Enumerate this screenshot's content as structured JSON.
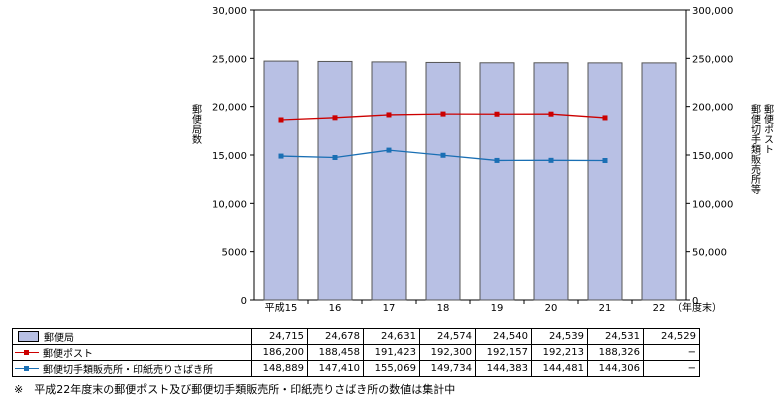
{
  "chart_data": {
    "type": "bar",
    "categories": [
      "平成15",
      "16",
      "17",
      "18",
      "19",
      "20",
      "21",
      "22"
    ],
    "x_unit": "（年度末）",
    "left_axis": {
      "label": "郵便局数",
      "ticks": [
        "0",
        "5000",
        "10,000",
        "15,000",
        "20,000",
        "25,000",
        "30,000"
      ],
      "ylim": [
        0,
        30000
      ]
    },
    "right_axis": {
      "label": "郵便ポスト\n郵便切手類販売所等",
      "ticks": [
        "0",
        "50,000",
        "100,000",
        "150,000",
        "200,000",
        "250,000",
        "300,000"
      ],
      "ylim": [
        0,
        300000
      ]
    },
    "series": [
      {
        "name": "郵便局",
        "kind": "bar",
        "axis": "left",
        "color": "#b8c0e4",
        "values": [
          24715,
          24678,
          24631,
          24574,
          24540,
          24539,
          24531,
          24529
        ],
        "display": [
          "24,715",
          "24,678",
          "24,631",
          "24,574",
          "24,540",
          "24,539",
          "24,531",
          "24,529"
        ]
      },
      {
        "name": "郵便ポスト",
        "kind": "line",
        "axis": "right",
        "color": "#cc0000",
        "values": [
          186200,
          188458,
          191423,
          192300,
          192157,
          192213,
          188326,
          null
        ],
        "display": [
          "186,200",
          "188,458",
          "191,423",
          "192,300",
          "192,157",
          "192,213",
          "188,326",
          "−"
        ]
      },
      {
        "name": "郵便切手類販売所・印紙売りさばき所",
        "kind": "line",
        "axis": "right",
        "color": "#1a6fb4",
        "values": [
          148889,
          147410,
          155069,
          149734,
          144383,
          144481,
          144306,
          null
        ],
        "display": [
          "148,889",
          "147,410",
          "155,069",
          "149,734",
          "144,383",
          "144,481",
          "144,306",
          "−"
        ]
      }
    ],
    "grid": false
  },
  "footnote": "※　平成22年度末の郵便ポスト及び郵便切手類販売所・印紙売りさばき所の数値は集計中"
}
